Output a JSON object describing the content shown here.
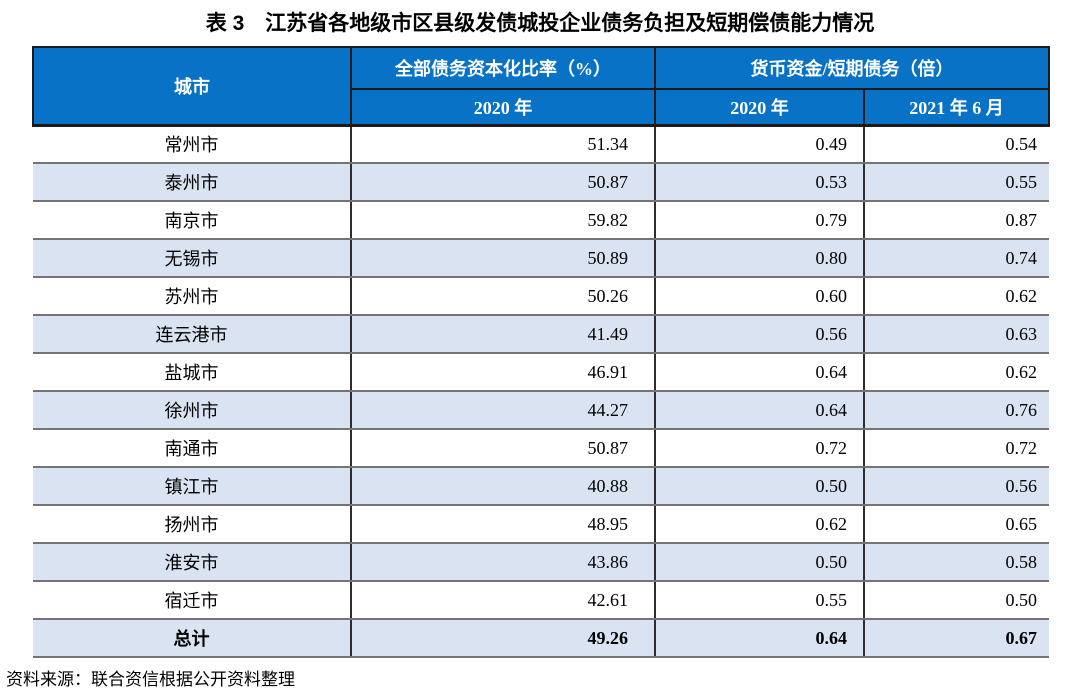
{
  "title": "表 3　江苏省各地级市区县级发债城投企业债务负担及短期偿债能力情况",
  "source_note": "资料来源：联合资信根据公开资料整理",
  "colors": {
    "header_bg": "#0872C6",
    "stripe_bg": "#DAE3F1",
    "header_text": "#FFFFFF",
    "row_border": "#757575",
    "column_border": "#2E2E2E"
  },
  "table": {
    "headers": {
      "city": "城市",
      "group_debt": "全部债务资本化比率（%）",
      "group_cash": "货币资金/短期债务（倍）",
      "sub_debt_2020": "2020 年",
      "sub_cash_2020": "2020 年",
      "sub_cash_2021": "2021 年 6 月"
    },
    "rows": [
      {
        "city": "常州市",
        "debt_ratio_2020": "51.34",
        "cash_ratio_2020": "0.49",
        "cash_ratio_2021_06": "0.54",
        "is_total": false
      },
      {
        "city": "泰州市",
        "debt_ratio_2020": "50.87",
        "cash_ratio_2020": "0.53",
        "cash_ratio_2021_06": "0.55",
        "is_total": false
      },
      {
        "city": "南京市",
        "debt_ratio_2020": "59.82",
        "cash_ratio_2020": "0.79",
        "cash_ratio_2021_06": "0.87",
        "is_total": false
      },
      {
        "city": "无锡市",
        "debt_ratio_2020": "50.89",
        "cash_ratio_2020": "0.80",
        "cash_ratio_2021_06": "0.74",
        "is_total": false
      },
      {
        "city": "苏州市",
        "debt_ratio_2020": "50.26",
        "cash_ratio_2020": "0.60",
        "cash_ratio_2021_06": "0.62",
        "is_total": false
      },
      {
        "city": "连云港市",
        "debt_ratio_2020": "41.49",
        "cash_ratio_2020": "0.56",
        "cash_ratio_2021_06": "0.63",
        "is_total": false
      },
      {
        "city": "盐城市",
        "debt_ratio_2020": "46.91",
        "cash_ratio_2020": "0.64",
        "cash_ratio_2021_06": "0.62",
        "is_total": false
      },
      {
        "city": "徐州市",
        "debt_ratio_2020": "44.27",
        "cash_ratio_2020": "0.64",
        "cash_ratio_2021_06": "0.76",
        "is_total": false
      },
      {
        "city": "南通市",
        "debt_ratio_2020": "50.87",
        "cash_ratio_2020": "0.72",
        "cash_ratio_2021_06": "0.72",
        "is_total": false
      },
      {
        "city": "镇江市",
        "debt_ratio_2020": "40.88",
        "cash_ratio_2020": "0.50",
        "cash_ratio_2021_06": "0.56",
        "is_total": false
      },
      {
        "city": "扬州市",
        "debt_ratio_2020": "48.95",
        "cash_ratio_2020": "0.62",
        "cash_ratio_2021_06": "0.65",
        "is_total": false
      },
      {
        "city": "淮安市",
        "debt_ratio_2020": "43.86",
        "cash_ratio_2020": "0.50",
        "cash_ratio_2021_06": "0.58",
        "is_total": false
      },
      {
        "city": "宿迁市",
        "debt_ratio_2020": "42.61",
        "cash_ratio_2020": "0.55",
        "cash_ratio_2021_06": "0.50",
        "is_total": false
      },
      {
        "city": "总计",
        "debt_ratio_2020": "49.26",
        "cash_ratio_2020": "0.64",
        "cash_ratio_2021_06": "0.67",
        "is_total": true
      }
    ]
  },
  "chart_data": {
    "type": "table",
    "title": "表 3　江苏省各地级市区县级发债城投企业债务负担及短期偿债能力情况",
    "columns": [
      "城市",
      "全部债务资本化比率（%）2020 年",
      "货币资金/短期债务（倍）2020 年",
      "货币资金/短期债务（倍）2021 年 6 月"
    ],
    "rows": [
      [
        "常州市",
        51.34,
        0.49,
        0.54
      ],
      [
        "泰州市",
        50.87,
        0.53,
        0.55
      ],
      [
        "南京市",
        59.82,
        0.79,
        0.87
      ],
      [
        "无锡市",
        50.89,
        0.8,
        0.74
      ],
      [
        "苏州市",
        50.26,
        0.6,
        0.62
      ],
      [
        "连云港市",
        41.49,
        0.56,
        0.63
      ],
      [
        "盐城市",
        46.91,
        0.64,
        0.62
      ],
      [
        "徐州市",
        44.27,
        0.64,
        0.76
      ],
      [
        "南通市",
        50.87,
        0.72,
        0.72
      ],
      [
        "镇江市",
        40.88,
        0.5,
        0.56
      ],
      [
        "扬州市",
        48.95,
        0.62,
        0.65
      ],
      [
        "淮安市",
        43.86,
        0.5,
        0.58
      ],
      [
        "宿迁市",
        42.61,
        0.55,
        0.5
      ],
      [
        "总计",
        49.26,
        0.64,
        0.67
      ]
    ]
  }
}
